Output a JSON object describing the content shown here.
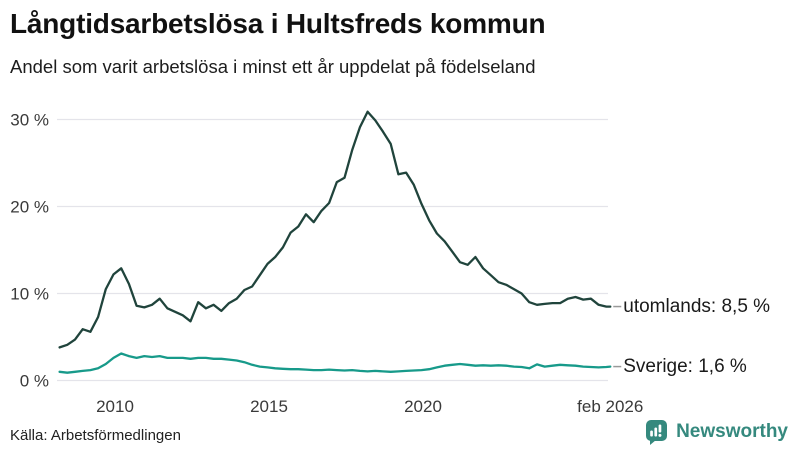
{
  "header": {
    "title": "Långtidsarbetslösa i Hultsfreds kommun",
    "subtitle": "Andel som varit arbetslösa i minst ett år uppdelat på födelseland"
  },
  "footer": {
    "source": "Källa: Arbetsförmedlingen",
    "brand": "Newsworthy",
    "brand_color": "#35897e"
  },
  "chart_data": {
    "type": "line",
    "title": "Långtidsarbetslösa i Hultsfreds kommun",
    "subtitle": "Andel som varit arbetslösa i minst ett år uppdelat på födelseland",
    "unit": "%",
    "x_range": [
      2008.2,
      2026.08
    ],
    "ylim": [
      0,
      31
    ],
    "grid": "horizontal-only",
    "legend_position": "end-of-line-labels",
    "x_ticks": [
      {
        "label": "2010",
        "year": 2010
      },
      {
        "label": "2015",
        "year": 2015
      },
      {
        "label": "2020",
        "year": 2020
      },
      {
        "label": "feb 2026",
        "year": 2026.08
      }
    ],
    "y_ticks": [
      {
        "label": "0 %",
        "value": 0
      },
      {
        "label": "10 %",
        "value": 10
      },
      {
        "label": "20 %",
        "value": 20
      },
      {
        "label": "30 %",
        "value": 30
      }
    ],
    "colors": {
      "grid": "#e4e4ea",
      "tick_text": "#3a3a3a",
      "connector": "#999999"
    },
    "series": [
      {
        "name": "utomlands",
        "end_label": "utomlands: 8,5 %",
        "end_value_text": "8,5 %",
        "color": "#20443c",
        "points": [
          [
            2008.2,
            3.8
          ],
          [
            2008.45,
            4.1
          ],
          [
            2008.7,
            4.7
          ],
          [
            2008.95,
            5.9
          ],
          [
            2009.2,
            5.6
          ],
          [
            2009.45,
            7.3
          ],
          [
            2009.7,
            10.5
          ],
          [
            2009.95,
            12.2
          ],
          [
            2010.2,
            12.9
          ],
          [
            2010.45,
            11.1
          ],
          [
            2010.7,
            8.6
          ],
          [
            2010.95,
            8.4
          ],
          [
            2011.2,
            8.7
          ],
          [
            2011.45,
            9.4
          ],
          [
            2011.7,
            8.3
          ],
          [
            2011.95,
            7.9
          ],
          [
            2012.2,
            7.5
          ],
          [
            2012.45,
            6.8
          ],
          [
            2012.7,
            9.0
          ],
          [
            2012.95,
            8.3
          ],
          [
            2013.2,
            8.7
          ],
          [
            2013.45,
            8.0
          ],
          [
            2013.7,
            8.9
          ],
          [
            2013.95,
            9.4
          ],
          [
            2014.2,
            10.4
          ],
          [
            2014.45,
            10.8
          ],
          [
            2014.7,
            12.1
          ],
          [
            2014.95,
            13.4
          ],
          [
            2015.2,
            14.2
          ],
          [
            2015.45,
            15.3
          ],
          [
            2015.7,
            17.0
          ],
          [
            2015.95,
            17.7
          ],
          [
            2016.2,
            19.1
          ],
          [
            2016.45,
            18.2
          ],
          [
            2016.7,
            19.5
          ],
          [
            2016.95,
            20.4
          ],
          [
            2017.2,
            22.8
          ],
          [
            2017.45,
            23.3
          ],
          [
            2017.7,
            26.5
          ],
          [
            2017.95,
            29.1
          ],
          [
            2018.2,
            30.9
          ],
          [
            2018.45,
            29.9
          ],
          [
            2018.7,
            28.6
          ],
          [
            2018.95,
            27.2
          ],
          [
            2019.2,
            23.7
          ],
          [
            2019.45,
            23.9
          ],
          [
            2019.7,
            22.5
          ],
          [
            2019.95,
            20.3
          ],
          [
            2020.2,
            18.4
          ],
          [
            2020.45,
            16.9
          ],
          [
            2020.7,
            16.0
          ],
          [
            2020.95,
            14.8
          ],
          [
            2021.2,
            13.6
          ],
          [
            2021.45,
            13.3
          ],
          [
            2021.7,
            14.2
          ],
          [
            2021.95,
            12.9
          ],
          [
            2022.2,
            12.1
          ],
          [
            2022.45,
            11.3
          ],
          [
            2022.7,
            11.0
          ],
          [
            2022.95,
            10.5
          ],
          [
            2023.2,
            10.0
          ],
          [
            2023.45,
            9.0
          ],
          [
            2023.7,
            8.7
          ],
          [
            2023.95,
            8.8
          ],
          [
            2024.2,
            8.9
          ],
          [
            2024.45,
            8.9
          ],
          [
            2024.7,
            9.4
          ],
          [
            2024.95,
            9.6
          ],
          [
            2025.2,
            9.3
          ],
          [
            2025.45,
            9.4
          ],
          [
            2025.7,
            8.7
          ],
          [
            2025.95,
            8.5
          ],
          [
            2026.08,
            8.5
          ]
        ]
      },
      {
        "name": "Sverige",
        "end_label": "Sverige: 1,6 %",
        "end_value_text": "1,6 %",
        "color": "#179a8a",
        "points": [
          [
            2008.2,
            1.0
          ],
          [
            2008.45,
            0.9
          ],
          [
            2008.7,
            1.0
          ],
          [
            2008.95,
            1.1
          ],
          [
            2009.2,
            1.2
          ],
          [
            2009.45,
            1.4
          ],
          [
            2009.7,
            1.9
          ],
          [
            2009.95,
            2.6
          ],
          [
            2010.2,
            3.1
          ],
          [
            2010.45,
            2.8
          ],
          [
            2010.7,
            2.6
          ],
          [
            2010.95,
            2.8
          ],
          [
            2011.2,
            2.7
          ],
          [
            2011.45,
            2.8
          ],
          [
            2011.7,
            2.6
          ],
          [
            2011.95,
            2.6
          ],
          [
            2012.2,
            2.6
          ],
          [
            2012.45,
            2.5
          ],
          [
            2012.7,
            2.6
          ],
          [
            2012.95,
            2.6
          ],
          [
            2013.2,
            2.5
          ],
          [
            2013.45,
            2.5
          ],
          [
            2013.7,
            2.4
          ],
          [
            2013.95,
            2.3
          ],
          [
            2014.2,
            2.1
          ],
          [
            2014.45,
            1.8
          ],
          [
            2014.7,
            1.6
          ],
          [
            2014.95,
            1.5
          ],
          [
            2015.2,
            1.4
          ],
          [
            2015.45,
            1.35
          ],
          [
            2015.7,
            1.3
          ],
          [
            2015.95,
            1.3
          ],
          [
            2016.2,
            1.25
          ],
          [
            2016.45,
            1.2
          ],
          [
            2016.7,
            1.2
          ],
          [
            2016.95,
            1.25
          ],
          [
            2017.2,
            1.2
          ],
          [
            2017.45,
            1.15
          ],
          [
            2017.7,
            1.2
          ],
          [
            2017.95,
            1.1
          ],
          [
            2018.2,
            1.05
          ],
          [
            2018.45,
            1.1
          ],
          [
            2018.7,
            1.05
          ],
          [
            2018.95,
            1.0
          ],
          [
            2019.2,
            1.05
          ],
          [
            2019.45,
            1.1
          ],
          [
            2019.7,
            1.15
          ],
          [
            2019.95,
            1.2
          ],
          [
            2020.2,
            1.3
          ],
          [
            2020.45,
            1.5
          ],
          [
            2020.7,
            1.7
          ],
          [
            2020.95,
            1.8
          ],
          [
            2021.2,
            1.9
          ],
          [
            2021.45,
            1.8
          ],
          [
            2021.7,
            1.7
          ],
          [
            2021.95,
            1.75
          ],
          [
            2022.2,
            1.7
          ],
          [
            2022.45,
            1.75
          ],
          [
            2022.7,
            1.7
          ],
          [
            2022.95,
            1.6
          ],
          [
            2023.2,
            1.55
          ],
          [
            2023.45,
            1.4
          ],
          [
            2023.7,
            1.85
          ],
          [
            2023.95,
            1.6
          ],
          [
            2024.2,
            1.7
          ],
          [
            2024.45,
            1.8
          ],
          [
            2024.7,
            1.75
          ],
          [
            2024.95,
            1.7
          ],
          [
            2025.2,
            1.6
          ],
          [
            2025.45,
            1.55
          ],
          [
            2025.7,
            1.5
          ],
          [
            2025.95,
            1.55
          ],
          [
            2026.08,
            1.6
          ]
        ]
      }
    ]
  }
}
